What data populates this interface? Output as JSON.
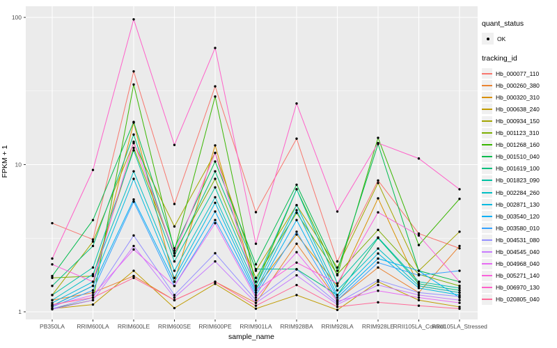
{
  "chart_data": {
    "type": "line",
    "xlabel": "sample_name",
    "ylabel": "FPKM + 1",
    "y_scale": "log10",
    "grid": true,
    "panel_bg": "#EBEBEB",
    "grid_color": "#FFFFFF",
    "point_color": "#000000",
    "y_ticks": [
      1,
      10,
      100
    ],
    "y_tick_labels": [
      "1",
      "10",
      "100"
    ],
    "y_minor": [
      3.162,
      31.62
    ],
    "ylim": [
      0.95,
      110
    ],
    "x_categories": [
      "PB350LA",
      "RRIM600LA",
      "RRIM600LE",
      "RRIM600SE",
      "RRIM600PE",
      "RRIM901LA",
      "RRIM928BA",
      "RRIM928LA",
      "RRIM928LE",
      "RRII105LA_Control",
      "RRII105LA_Stressed"
    ],
    "series": [
      {
        "name": "Hb_000077_110",
        "color": "#F8766D",
        "values": [
          4.0,
          3.1,
          43,
          5.4,
          34,
          4.75,
          15,
          2.2,
          7.8,
          3.4,
          2.7
        ]
      },
      {
        "name": "Hb_000260_380",
        "color": "#EA8331",
        "values": [
          1.2,
          1.35,
          1.75,
          1.2,
          1.6,
          1.15,
          2.9,
          1.2,
          2.0,
          1.35,
          2.8
        ]
      },
      {
        "name": "Hb_000320_310",
        "color": "#D89000",
        "values": [
          1.1,
          1.5,
          19.3,
          1.6,
          13.5,
          1.45,
          3.35,
          1.5,
          5.9,
          1.5,
          1.35
        ]
      },
      {
        "name": "Hb_000638_240",
        "color": "#C09B00",
        "values": [
          1.05,
          1.12,
          1.9,
          1.06,
          1.55,
          1.05,
          1.3,
          1.03,
          1.6,
          1.2,
          1.08
        ]
      },
      {
        "name": "Hb_000934_150",
        "color": "#A3A500",
        "values": [
          1.3,
          3.0,
          14,
          3.8,
          12,
          1.9,
          5.3,
          2.0,
          7.5,
          1.9,
          3.5
        ]
      },
      {
        "name": "Hb_001123_310",
        "color": "#7CAE00",
        "values": [
          1.7,
          1.75,
          13,
          2.5,
          8.0,
          1.7,
          4.7,
          1.8,
          3.6,
          1.8,
          1.5
        ]
      },
      {
        "name": "Hb_001268_160",
        "color": "#39B600",
        "values": [
          1.05,
          1.2,
          35,
          2.6,
          29,
          1.5,
          6.8,
          1.77,
          15.2,
          2.84,
          5.85
        ]
      },
      {
        "name": "Hb_001510_040",
        "color": "#00BB4E",
        "values": [
          1.75,
          4.2,
          19.5,
          2.7,
          10.5,
          2.1,
          7.3,
          1.9,
          13.8,
          1.9,
          1.6
        ]
      },
      {
        "name": "Hb_001619_100",
        "color": "#00BF7D",
        "values": [
          1.5,
          2.8,
          16,
          2.4,
          9.0,
          1.95,
          1.95,
          1.3,
          3.17,
          1.55,
          1.4
        ]
      },
      {
        "name": "Hb_001823_090",
        "color": "#00C1A3",
        "values": [
          1.3,
          2.0,
          12.5,
          2.2,
          7.0,
          1.6,
          6.8,
          1.56,
          3.2,
          1.6,
          1.45
        ]
      },
      {
        "name": "Hb_002284_260",
        "color": "#00BFC4",
        "values": [
          1.2,
          1.8,
          9.0,
          1.9,
          6.0,
          1.5,
          5.3,
          1.4,
          2.69,
          1.5,
          1.35
        ]
      },
      {
        "name": "Hb_002871_130",
        "color": "#00BAE0",
        "values": [
          1.15,
          1.6,
          8.0,
          1.7,
          5.5,
          1.4,
          4.9,
          1.3,
          2.49,
          1.45,
          1.3
        ]
      },
      {
        "name": "Hb_003540_120",
        "color": "#00B0F6",
        "values": [
          1.1,
          1.5,
          5.8,
          1.6,
          4.8,
          1.35,
          4.2,
          1.25,
          2.3,
          1.9,
          1.25
        ]
      },
      {
        "name": "Hb_003580_010",
        "color": "#35A2FF",
        "values": [
          1.08,
          1.4,
          5.6,
          1.5,
          4.2,
          1.3,
          3.5,
          1.2,
          2.16,
          1.77,
          1.9
        ]
      },
      {
        "name": "Hb_004531_080",
        "color": "#9590FF",
        "values": [
          1.05,
          1.25,
          3.3,
          1.3,
          2.5,
          1.2,
          1.94,
          1.15,
          1.64,
          1.35,
          1.27
        ]
      },
      {
        "name": "Hb_004545_040",
        "color": "#C77CFF",
        "values": [
          1.04,
          1.2,
          2.8,
          1.25,
          2.2,
          1.15,
          1.77,
          1.12,
          1.52,
          1.3,
          1.2
        ]
      },
      {
        "name": "Hb_004968_040",
        "color": "#E76BF3",
        "values": [
          1.1,
          1.3,
          2.65,
          1.5,
          4.0,
          1.25,
          2.54,
          1.18,
          1.39,
          1.25,
          1.15
        ]
      },
      {
        "name": "Hb_005271_140",
        "color": "#FA62DB",
        "values": [
          2.1,
          1.6,
          14.3,
          2.5,
          12,
          1.4,
          2.16,
          1.56,
          4.74,
          3.3,
          1.6
        ]
      },
      {
        "name": "Hb_006970_130",
        "color": "#FF61C9",
        "values": [
          2.3,
          9.2,
          97,
          13.6,
          62,
          2.9,
          26,
          4.8,
          14,
          11,
          6.8
        ]
      },
      {
        "name": "Hb_020805_040",
        "color": "#FF6A98",
        "values": [
          1.12,
          1.25,
          1.7,
          1.2,
          1.6,
          1.1,
          1.52,
          1.08,
          1.16,
          1.1,
          1.05
        ]
      }
    ]
  },
  "legend": {
    "quant_status": {
      "title": "quant_status",
      "ok_label": "OK"
    },
    "tracking_id": {
      "title": "tracking_id"
    }
  }
}
